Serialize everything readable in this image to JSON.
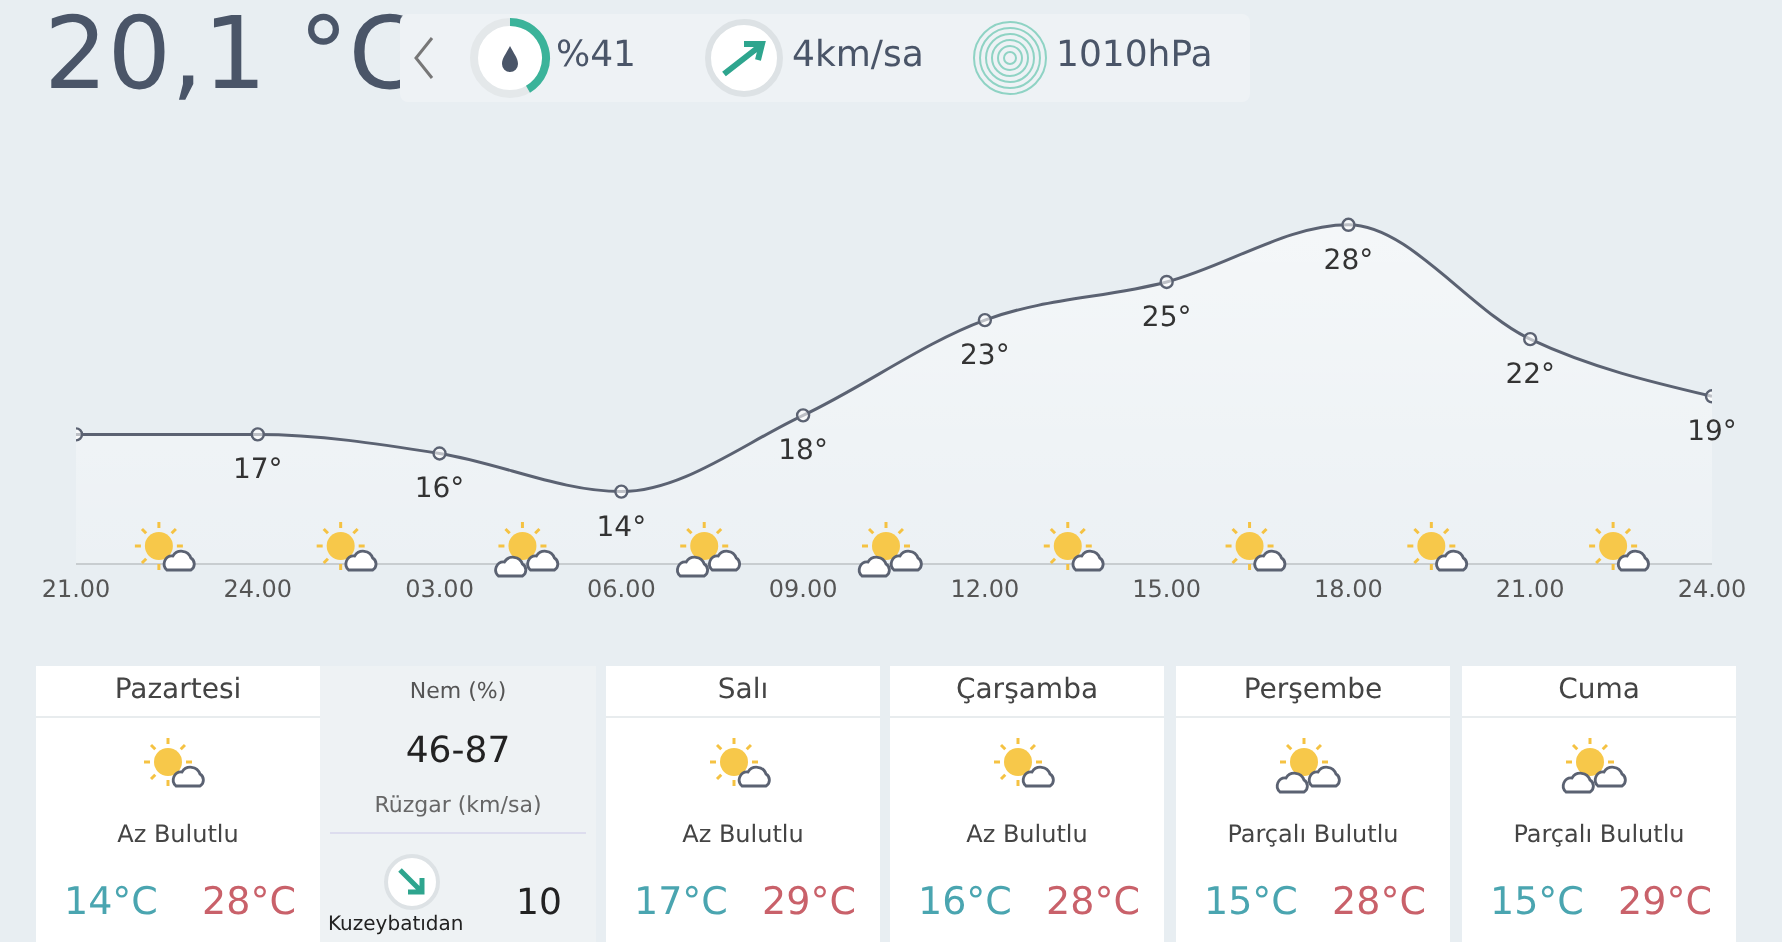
{
  "chart_data": [
    {
      "type": "other",
      "title": "20,1 °C",
      "annotations": [
        "%41",
        "4km/sa",
        "1010hPa"
      ]
    },
    {
      "type": "area",
      "categories": [
        "21.00",
        "24.00",
        "03.00",
        "06.00",
        "09.00",
        "12.00",
        "15.00",
        "18.00",
        "21.00",
        "24.00"
      ],
      "values": [
        17,
        17,
        16,
        14,
        18,
        23,
        25,
        28,
        22,
        19
      ],
      "value_labels": [
        null,
        "17°",
        "16°",
        "14°",
        "18°",
        "23°",
        "25°",
        "28°",
        "22°",
        "19°"
      ],
      "color": "#5b6272",
      "marker": "circle"
    },
    {
      "type": "other",
      "title": "Pazartesi",
      "annotations": [
        "Az Bulutlu",
        "14°C",
        "28°C",
        "Nem (%)",
        "46-87",
        "Rüzgar (km/sa)",
        "10",
        "Kuzeybatıdan"
      ]
    },
    {
      "type": "other",
      "title": "Salı",
      "annotations": [
        "Az Bulutlu",
        "17°C",
        "29°C"
      ]
    },
    {
      "type": "other",
      "title": "Çarşamba",
      "annotations": [
        "Az Bulutlu",
        "16°C",
        "28°C"
      ]
    },
    {
      "type": "other",
      "title": "Perşembe",
      "annotations": [
        "Parçalı Bulutlu",
        "15°C",
        "28°C"
      ]
    },
    {
      "type": "other",
      "title": "Cuma",
      "annotations": [
        "Parçalı Bulutlu",
        "15°C",
        "29°C"
      ]
    }
  ]
}
